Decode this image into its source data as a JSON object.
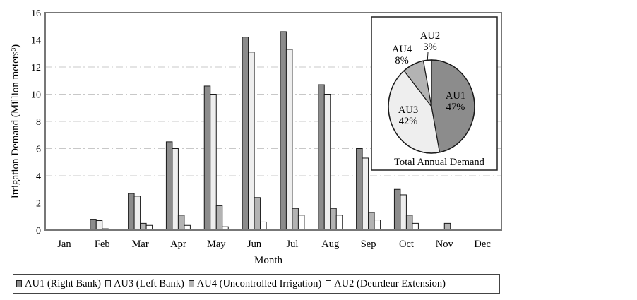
{
  "chart_data": [
    {
      "type": "bar",
      "xlabel": "Month",
      "ylabel": "Irrigation Demand (Million meters³)",
      "ylim": [
        0,
        16
      ],
      "yticks": [
        0,
        2,
        4,
        6,
        8,
        10,
        12,
        14,
        16
      ],
      "grid": "horizontal dashed",
      "categories": [
        "Jan",
        "Feb",
        "Mar",
        "Apr",
        "May",
        "Jun",
        "Jul",
        "Aug",
        "Sep",
        "Oct",
        "Nov",
        "Dec"
      ],
      "series": [
        {
          "name": "AU1 (Right Bank)",
          "color": "#8c8c8c",
          "values": [
            0,
            0.8,
            2.7,
            6.5,
            10.6,
            14.2,
            14.6,
            10.7,
            6.0,
            3.0,
            0,
            0
          ]
        },
        {
          "name": "AU3 (Left Bank)",
          "color": "#eeeeee",
          "values": [
            0,
            0.7,
            2.5,
            6.0,
            10.0,
            13.1,
            13.3,
            10.0,
            5.3,
            2.6,
            0,
            0
          ]
        },
        {
          "name": "AU4 (Uncontrolled Irrigation)",
          "color": "#b3b3b3",
          "values": [
            0,
            0.1,
            0.5,
            1.1,
            1.8,
            2.4,
            1.6,
            1.6,
            1.3,
            1.1,
            0.5,
            0
          ]
        },
        {
          "name": "AU2 (Deurdeur Extension)",
          "color": "#ffffff",
          "values": [
            0,
            0,
            0.35,
            0.35,
            0.25,
            0.6,
            1.1,
            1.1,
            0.75,
            0.5,
            0,
            0
          ]
        }
      ],
      "legend_position": "bottom"
    },
    {
      "type": "pie",
      "title": "Total Annual Demand",
      "slices": [
        {
          "label": "AU1",
          "percent_label": "47%",
          "value": 47,
          "color": "#8c8c8c"
        },
        {
          "label": "AU3",
          "percent_label": "42%",
          "value": 42,
          "color": "#eeeeee"
        },
        {
          "label": "AU4",
          "percent_label": "8%",
          "value": 8,
          "color": "#b3b3b3"
        },
        {
          "label": "AU2",
          "percent_label": "3%",
          "value": 3,
          "color": "#ffffff"
        }
      ]
    }
  ]
}
